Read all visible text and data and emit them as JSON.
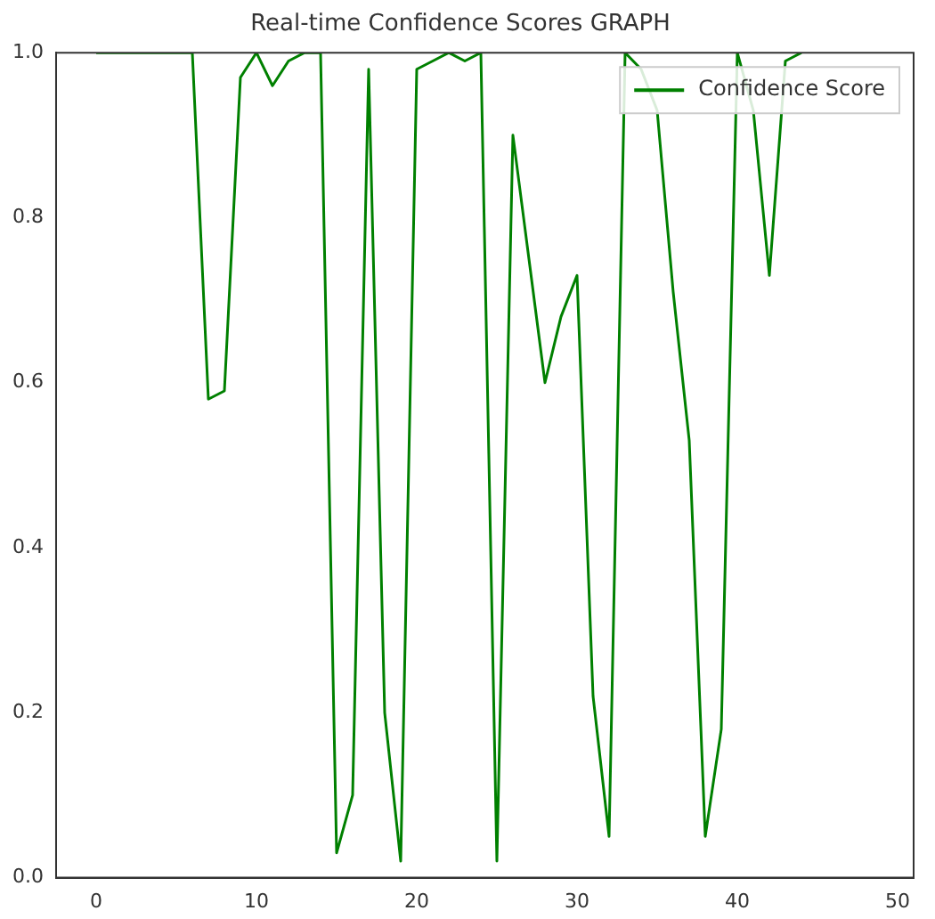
{
  "chart_data": {
    "type": "line",
    "title": "Real-time Confidence Scores GRAPH",
    "x": [
      0,
      1,
      2,
      3,
      4,
      5,
      6,
      7,
      8,
      9,
      10,
      11,
      12,
      13,
      14,
      15,
      16,
      17,
      18,
      19,
      20,
      21,
      22,
      23,
      24,
      25,
      26,
      27,
      28,
      29,
      30,
      31,
      32,
      33,
      34,
      35,
      36,
      37,
      38,
      39,
      40,
      41,
      42,
      43,
      44
    ],
    "series": [
      {
        "name": "Confidence Score",
        "color": "#008000",
        "values": [
          1.0,
          1.0,
          1.0,
          1.0,
          1.0,
          1.0,
          1.0,
          0.58,
          0.59,
          0.97,
          1.0,
          0.96,
          0.99,
          1.0,
          1.0,
          0.03,
          0.1,
          0.98,
          0.2,
          0.02,
          0.98,
          0.99,
          1.0,
          0.99,
          1.0,
          0.02,
          0.9,
          0.75,
          0.6,
          0.68,
          0.73,
          0.22,
          0.05,
          1.0,
          0.98,
          0.93,
          0.71,
          0.53,
          0.05,
          0.18,
          1.0,
          0.93,
          0.73,
          0.99,
          1.0
        ]
      }
    ],
    "xlim": [
      -2.5,
      51
    ],
    "xticks": [
      0,
      10,
      20,
      30,
      40,
      50
    ],
    "ylim": [
      0,
      1
    ],
    "yticks": [
      {
        "value": 0,
        "label": "0.0"
      },
      {
        "value": 0.2,
        "label": "0.2"
      },
      {
        "value": 0.4,
        "label": "0.4"
      },
      {
        "value": 0.6,
        "label": "0.6"
      },
      {
        "value": 0.8,
        "label": "0.8"
      },
      {
        "value": 1,
        "label": "1.0"
      }
    ],
    "legend": "top right",
    "grid": false,
    "marker": "none",
    "line_style": "solid"
  }
}
